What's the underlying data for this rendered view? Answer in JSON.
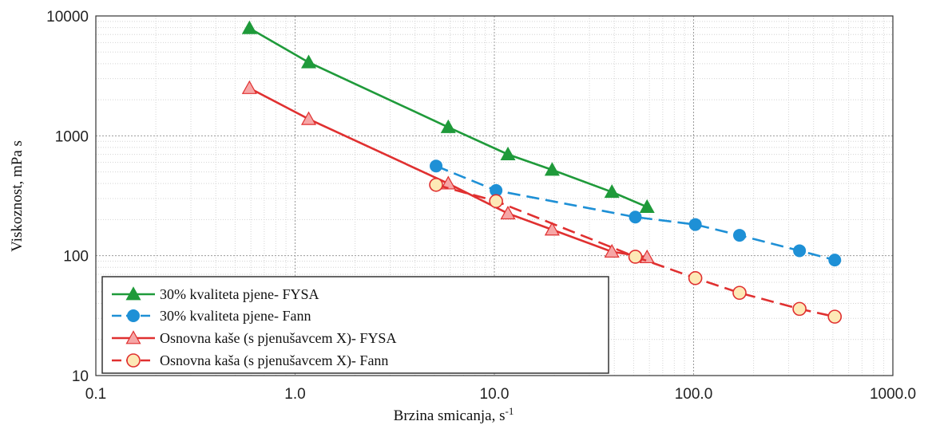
{
  "chart_data": {
    "type": "line",
    "xlabel": "Brzina smicanja, s",
    "xlabel_sup": "-1",
    "ylabel": "Viskoznost, mPa s",
    "xscale": "log",
    "yscale": "log",
    "xlim": [
      0.1,
      1000
    ],
    "ylim": [
      10,
      10000
    ],
    "x_ticks": [
      "0.1",
      "1.0",
      "10.0",
      "100.0",
      "1000.0"
    ],
    "y_ticks": [
      "10",
      "100",
      "1000",
      "10000"
    ],
    "grid": true,
    "legend_position": "bottom-left",
    "series": [
      {
        "name": "30% kvaliteta pjene- FYSA",
        "color": "#1f9a3a",
        "marker": "triangle-filled",
        "line": "solid",
        "x": [
          0.59,
          1.17,
          5.87,
          11.7,
          19.5,
          38.9,
          58.4
        ],
        "y": [
          7900,
          4100,
          1180,
          700,
          520,
          340,
          255
        ]
      },
      {
        "name": "30% kvaliteta pjene- Fann",
        "color": "#1e90d6",
        "marker": "circle-filled",
        "line": "dashed",
        "x": [
          5.1,
          10.2,
          51,
          102,
          170,
          340,
          511
        ],
        "y": [
          560,
          350,
          210,
          182,
          148,
          110,
          92
        ]
      },
      {
        "name": "Osnovna kaše (s pjenušavcem X)- FYSA",
        "color": "#e03030",
        "marker": "triangle-open",
        "line": "solid",
        "x": [
          0.59,
          1.17,
          5.87,
          11.7,
          19.5,
          38.9,
          58.4
        ],
        "y": [
          2500,
          1380,
          400,
          225,
          165,
          108,
          97
        ]
      },
      {
        "name": "Osnovna kaša (s pjenušavcem X)- Fann",
        "color": "#e03030",
        "marker": "circle-open",
        "line": "dashed",
        "x": [
          5.1,
          10.2,
          51,
          102,
          170,
          340,
          511
        ],
        "y": [
          390,
          285,
          98,
          65,
          49,
          36,
          31
        ]
      }
    ]
  }
}
